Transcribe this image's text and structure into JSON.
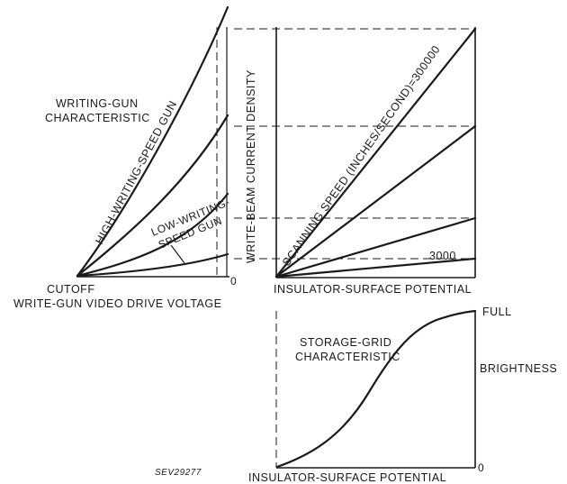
{
  "left_panel": {
    "title_line1": "WRITING-GUN",
    "title_line2": "CHARACTERISTIC",
    "high_gun_label": "HIGH-WRITING-SPEED GUN",
    "low_gun_line1": "LOW-WRITING-",
    "low_gun_line2": "SPEED GUN",
    "cutoff_label": "CUTOFF",
    "zero_label": "0",
    "x_axis_label": "WRITE-GUN VIDEO DRIVE VOLTAGE"
  },
  "right_top_panel": {
    "y_axis_label": "WRITE-BEAM CURRENT DENSITY",
    "speed_label": "SCANNING SPEED (INCHES/SECOND)=300000",
    "low_speed_label": "3000",
    "x_axis_label": "INSULATOR-SURFACE POTENTIAL"
  },
  "right_bottom_panel": {
    "title_line1": "STORAGE-GRID",
    "title_line2": "CHARACTERISTIC",
    "full_label": "FULL",
    "brightness_label": "BRIGHTNESS",
    "zero_label": "0",
    "x_axis_label": "INSULATOR-SURFACE POTENTIAL"
  },
  "figure_id": "SEV29277"
}
